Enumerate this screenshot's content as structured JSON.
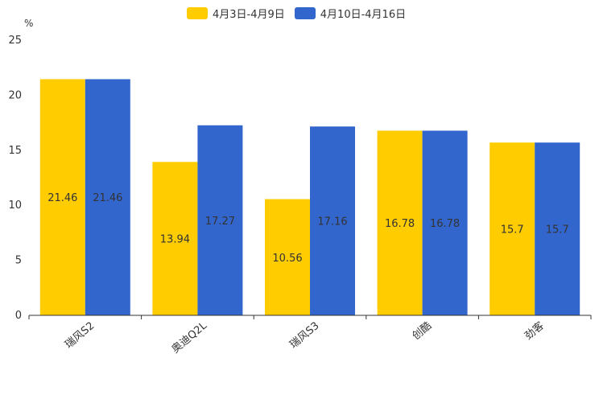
{
  "chart_data": {
    "type": "bar",
    "title": "",
    "unit_label": "%",
    "xlabel": "",
    "ylabel": "%",
    "ylim": [
      0,
      25
    ],
    "yticks": [
      0,
      5,
      10,
      15,
      20,
      25
    ],
    "categories": [
      "瑞风S2",
      "奥迪Q2L",
      "瑞风S3",
      "创酷",
      "劲客"
    ],
    "series": [
      {
        "name": "4月3日-4月9日",
        "color": "#ffcc00",
        "values": [
          21.46,
          13.94,
          10.56,
          16.78,
          15.7
        ]
      },
      {
        "name": "4月10日-4月16日",
        "color": "#3366cc",
        "values": [
          21.46,
          17.27,
          17.16,
          16.78,
          15.7
        ]
      }
    ],
    "legend_position": "top",
    "grid": false
  }
}
